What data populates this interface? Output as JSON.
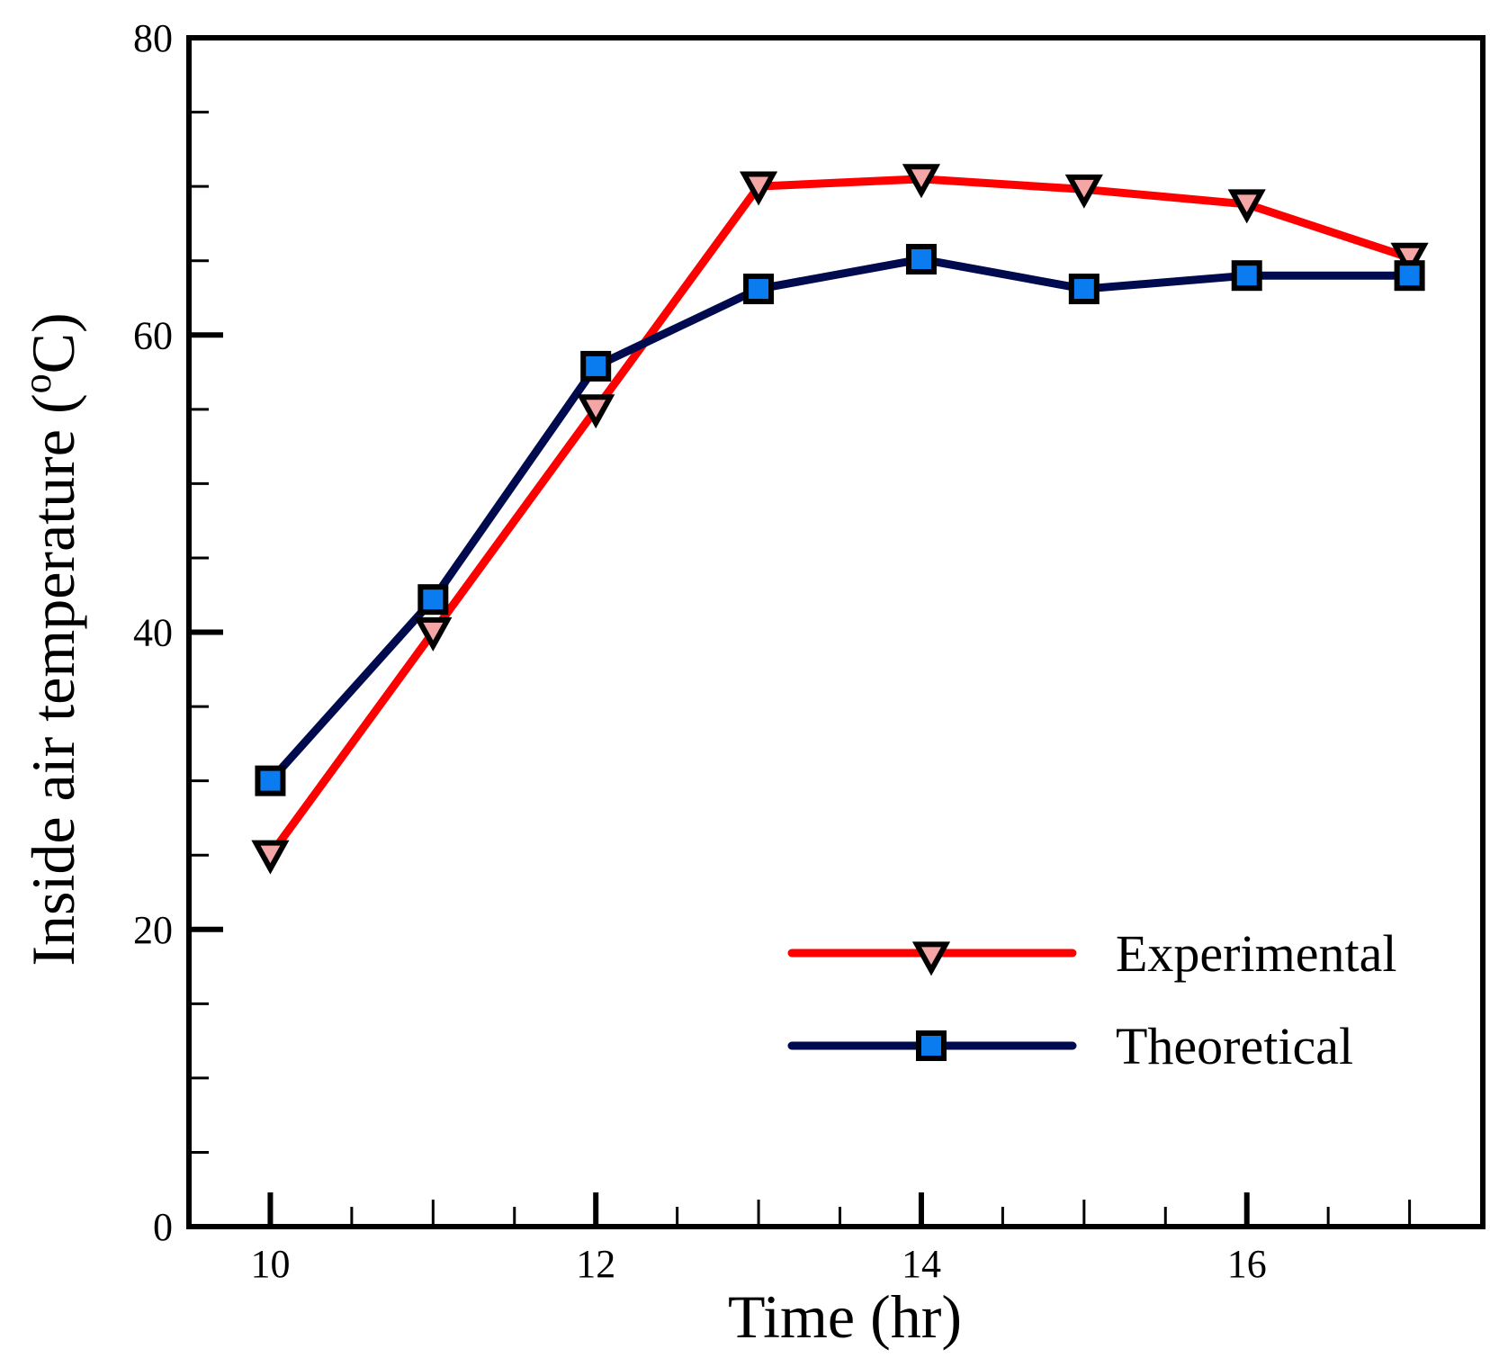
{
  "chart_data": {
    "type": "line",
    "xlabel": "Time (hr)",
    "ylabel": "Inside air temperature (",
    "ylabel_sup": "o",
    "ylabel_tail": "C)",
    "xlim": [
      9.5,
      17.45
    ],
    "ylim": [
      0,
      80
    ],
    "xticks_major": [
      10,
      12,
      14,
      16
    ],
    "xtick_labels": [
      "10",
      "12",
      "14",
      "16"
    ],
    "xticks_minor_step": 0.5,
    "yticks_major": [
      0,
      20,
      40,
      60,
      80
    ],
    "ytick_labels": [
      "0",
      "20",
      "40",
      "60",
      "80"
    ],
    "yticks_minor_step": 5,
    "legend_position": "lower-right",
    "x": [
      10,
      11,
      12,
      13,
      14,
      15,
      16,
      17
    ],
    "series": [
      {
        "name": "Experimental",
        "color": "#ff0000",
        "marker": "triangle-down",
        "marker_fill": "#f4a6a6",
        "values": [
          25,
          40,
          55,
          70,
          70.5,
          69.8,
          68.8,
          65.2
        ]
      },
      {
        "name": "Theoretical",
        "color": "#000a4e",
        "marker": "square",
        "marker_fill": "#0a7cf0",
        "values": [
          30,
          42.2,
          57.9,
          63.1,
          65.1,
          63.1,
          64,
          64
        ]
      }
    ]
  }
}
